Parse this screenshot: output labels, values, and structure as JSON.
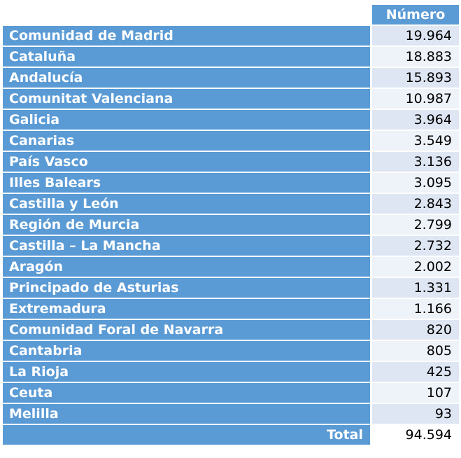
{
  "table": {
    "header": {
      "value_label": "Número"
    },
    "rows": [
      {
        "name": "Comunidad de Madrid",
        "value": "19.964"
      },
      {
        "name": "Cataluña",
        "value": "18.883"
      },
      {
        "name": "Andalucía",
        "value": "15.893"
      },
      {
        "name": "Comunitat Valenciana",
        "value": "10.987"
      },
      {
        "name": "Galicia",
        "value": "3.964"
      },
      {
        "name": "Canarias",
        "value": "3.549"
      },
      {
        "name": "País Vasco",
        "value": "3.136"
      },
      {
        "name": "Illes Balears",
        "value": "3.095"
      },
      {
        "name": "Castilla y León",
        "value": "2.843"
      },
      {
        "name": "Región de Murcia",
        "value": "2.799"
      },
      {
        "name": "Castilla – La Mancha",
        "value": "2.732"
      },
      {
        "name": "Aragón",
        "value": "2.002"
      },
      {
        "name": "Principado de Asturias",
        "value": "1.331"
      },
      {
        "name": "Extremadura",
        "value": "1.166"
      },
      {
        "name": "Comunidad Foral de Navarra",
        "value": "820"
      },
      {
        "name": "Cantabria",
        "value": "805"
      },
      {
        "name": "La Rioja",
        "value": "425"
      },
      {
        "name": "Ceuta",
        "value": "107"
      },
      {
        "name": "Melilla",
        "value": "93"
      }
    ],
    "total": {
      "label": "Total",
      "value": "94.594"
    }
  },
  "colors": {
    "header_blue": "#5b9bd5",
    "value_band_dark": "#dfe6f3",
    "value_band_light": "#eef2f9"
  }
}
